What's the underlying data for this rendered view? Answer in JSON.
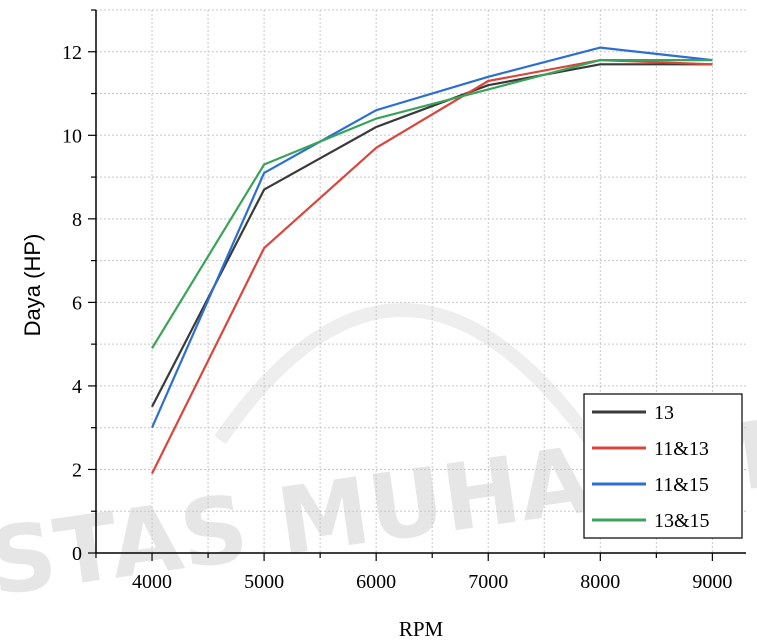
{
  "chart_data": {
    "type": "line",
    "xlabel": "RPM",
    "ylabel": "Daya (HP)",
    "x": [
      4000,
      5000,
      6000,
      7000,
      8000,
      9000
    ],
    "xlim": [
      3500,
      9300
    ],
    "ylim": [
      0,
      13
    ],
    "xticks": [
      4000,
      5000,
      6000,
      7000,
      8000,
      9000
    ],
    "yticks": [
      0,
      2,
      4,
      6,
      8,
      10,
      12
    ],
    "grid": true,
    "legend_position": "bottom-right",
    "series": [
      {
        "name": "13",
        "color": "#3a3a3a",
        "values": [
          3.5,
          8.7,
          10.2,
          11.2,
          11.7,
          11.7
        ]
      },
      {
        "name": "11&13",
        "color": "#d9463c",
        "values": [
          1.9,
          7.3,
          9.7,
          11.3,
          11.8,
          11.7
        ]
      },
      {
        "name": "11&15",
        "color": "#2c6fd1",
        "values": [
          3.0,
          9.1,
          10.6,
          11.4,
          12.1,
          11.8
        ]
      },
      {
        "name": "13&15",
        "color": "#3aa35a",
        "values": [
          4.9,
          9.3,
          10.4,
          11.1,
          11.8,
          11.8
        ]
      }
    ]
  },
  "watermark": {
    "text": "STAS MUHAMM"
  }
}
